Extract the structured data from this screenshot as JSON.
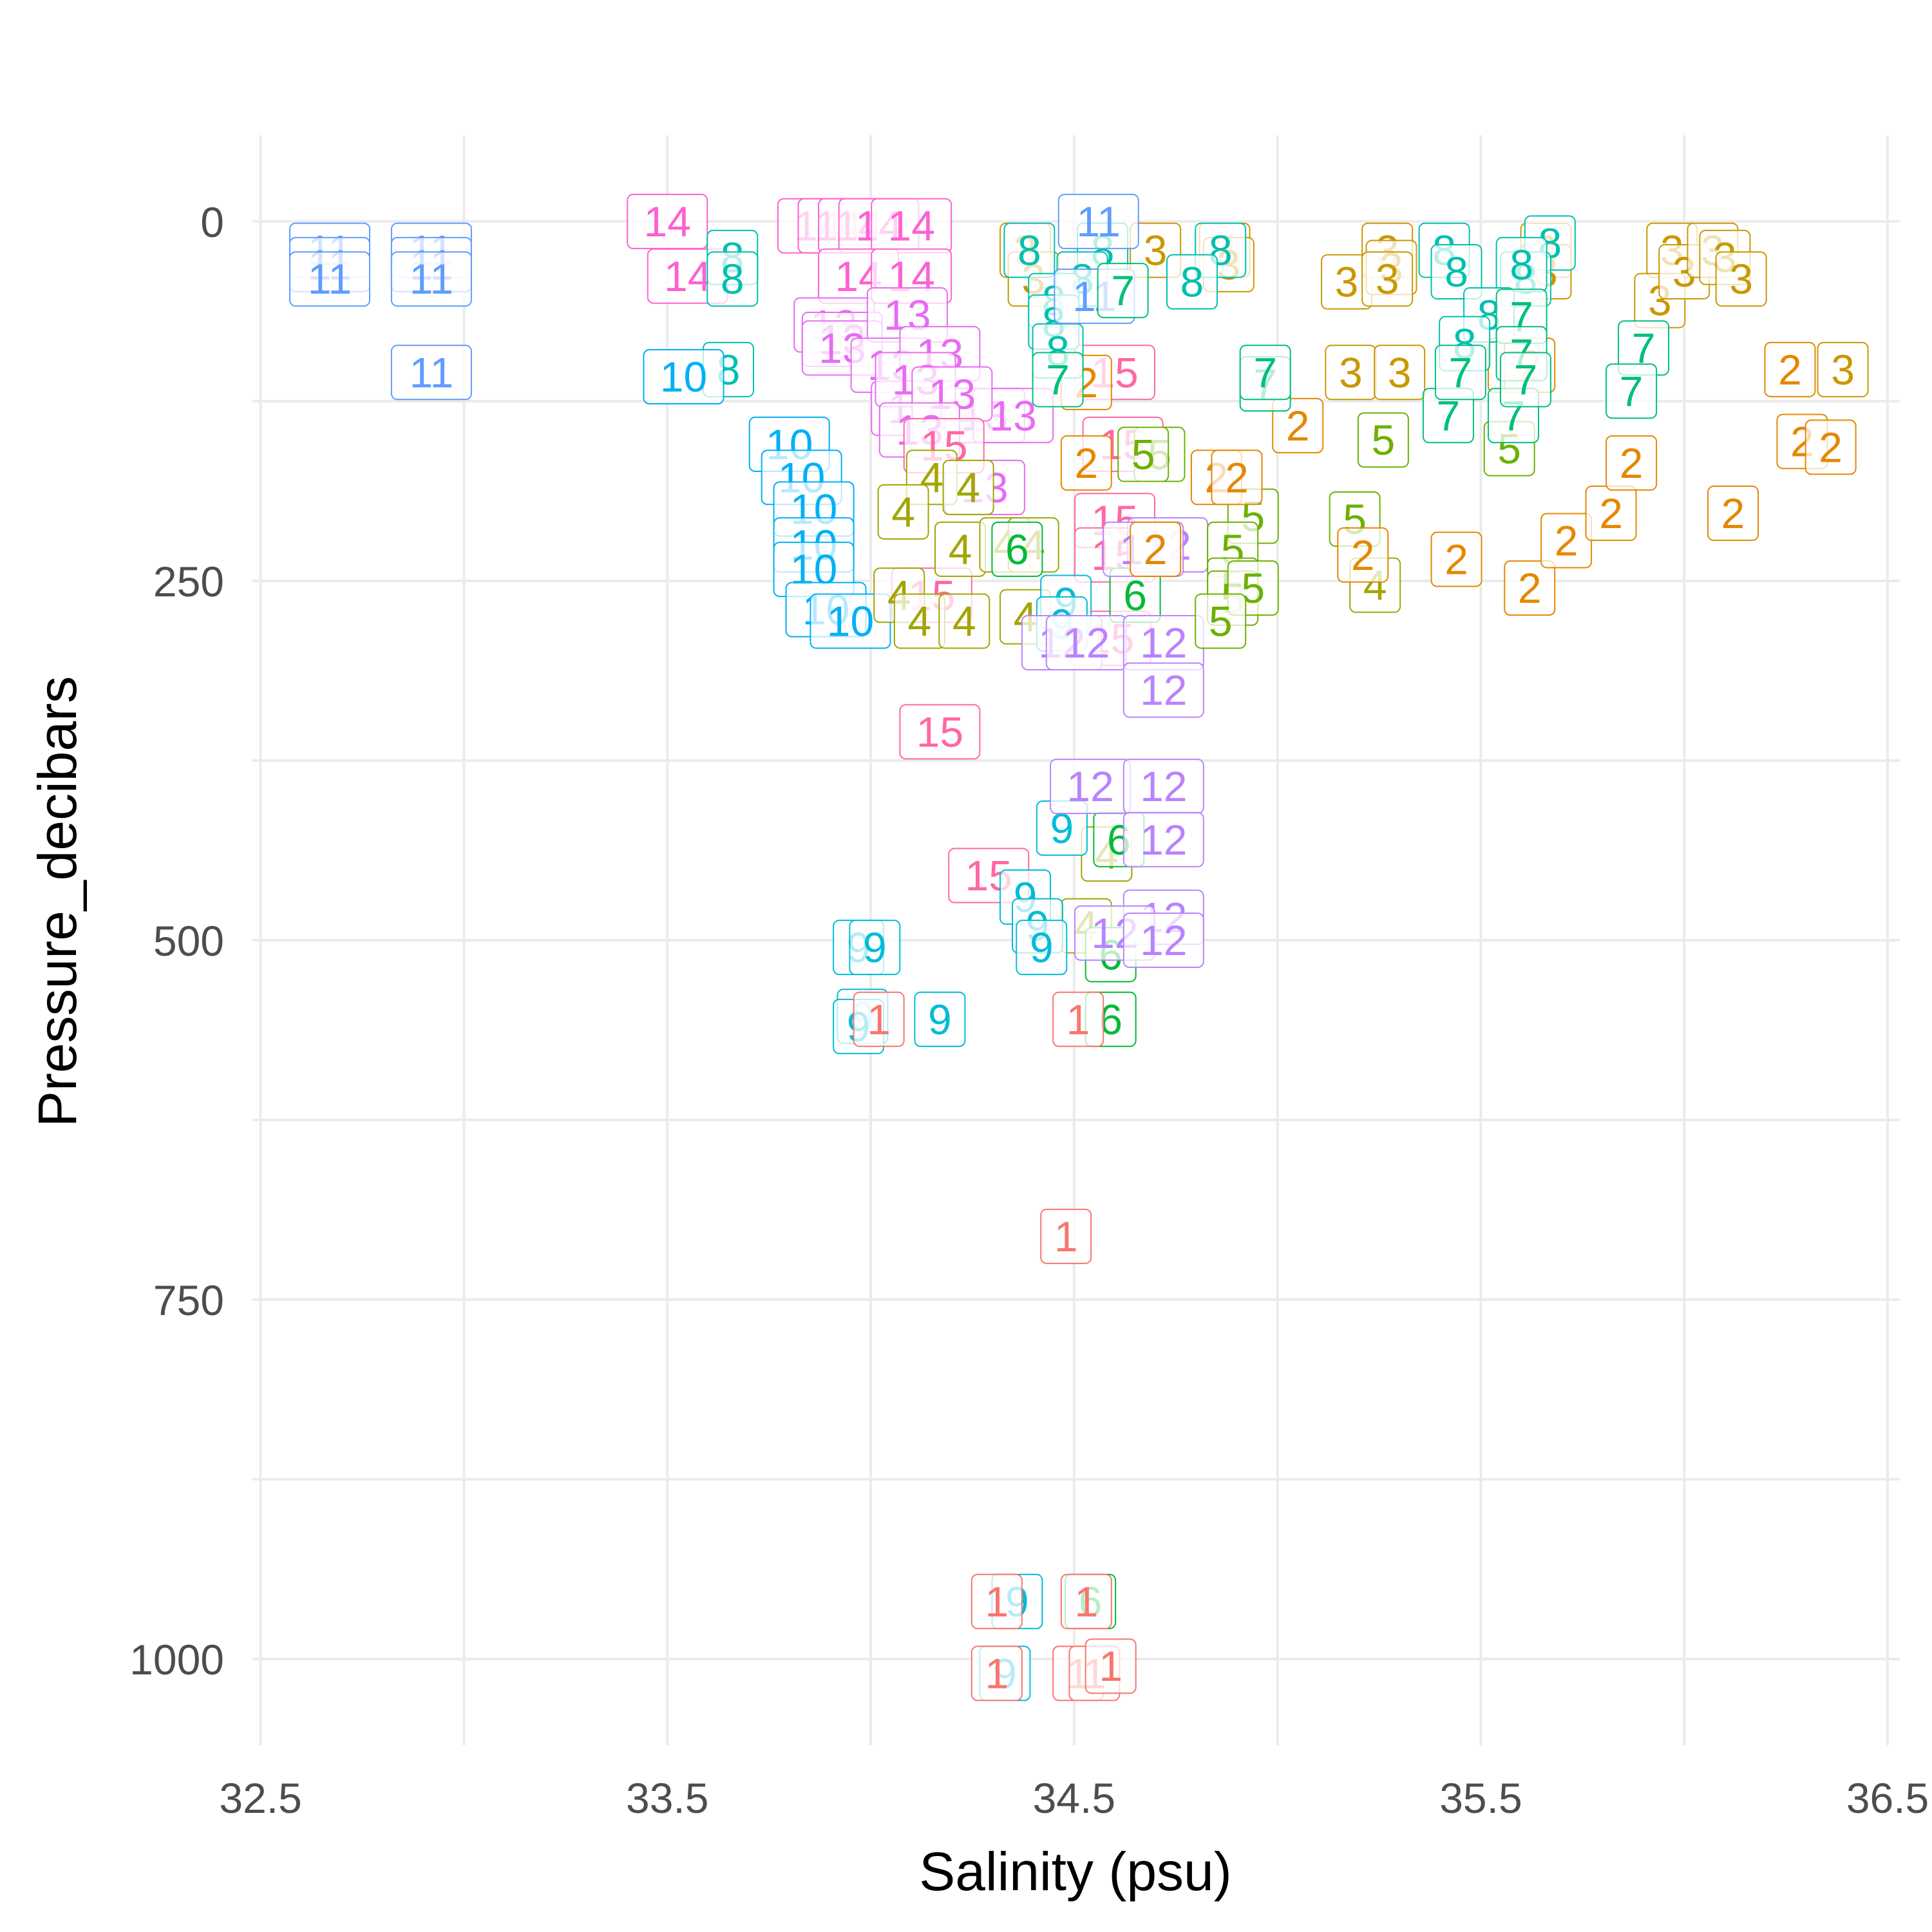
{
  "chart_data": {
    "type": "scatter",
    "title": "",
    "xlabel": "Salinity (psu)",
    "ylabel": "Pressure_decibars",
    "xlim": [
      32.48,
      36.53
    ],
    "ylim": [
      1060,
      -60
    ],
    "y_reversed": true,
    "x_ticks": [
      32.5,
      33.5,
      34.5,
      35.5,
      36.5
    ],
    "x_tick_labels": [
      "32.5",
      "33.5",
      "34.5",
      "35.5",
      "36.5"
    ],
    "y_ticks": [
      0,
      250,
      500,
      750,
      1000
    ],
    "y_tick_labels": [
      "0",
      "250",
      "500",
      "750",
      "1000"
    ],
    "x_minor_gridlines": [
      33.0,
      34.0,
      35.0,
      36.0
    ],
    "y_minor_gridlines": [
      125,
      375,
      625,
      875
    ],
    "grid": true,
    "legend": "none",
    "marker": "boxed text label showing station number",
    "station_colors": {
      "1": "#F8766D",
      "2": "#E58700",
      "3": "#C99800",
      "4": "#A3A500",
      "5": "#6BB100",
      "6": "#00BA38",
      "7": "#00BF7D",
      "8": "#00C0AF",
      "9": "#00BCD8",
      "10": "#00B0F6",
      "11": "#619CFF",
      "12": "#B983FF",
      "13": "#E76BF3",
      "14": "#FD61D1",
      "15": "#FF67A4"
    },
    "points": [
      {
        "label": "11",
        "x": 32.67,
        "y": 20
      },
      {
        "label": "11",
        "x": 32.67,
        "y": 30
      },
      {
        "label": "11",
        "x": 32.67,
        "y": 40
      },
      {
        "label": "11",
        "x": 32.92,
        "y": 20
      },
      {
        "label": "11",
        "x": 32.92,
        "y": 30
      },
      {
        "label": "11",
        "x": 32.92,
        "y": 40
      },
      {
        "label": "11",
        "x": 32.92,
        "y": 105
      },
      {
        "label": "14",
        "x": 33.5,
        "y": 0
      },
      {
        "label": "14",
        "x": 33.55,
        "y": 38
      },
      {
        "label": "14",
        "x": 33.87,
        "y": 3
      },
      {
        "label": "14",
        "x": 33.92,
        "y": 3
      },
      {
        "label": "14",
        "x": 33.97,
        "y": 3
      },
      {
        "label": "14",
        "x": 34.02,
        "y": 3
      },
      {
        "label": "14",
        "x": 34.1,
        "y": 3
      },
      {
        "label": "14",
        "x": 33.97,
        "y": 38
      },
      {
        "label": "14",
        "x": 34.1,
        "y": 38
      },
      {
        "label": "8",
        "x": 33.66,
        "y": 25
      },
      {
        "label": "8",
        "x": 33.66,
        "y": 40
      },
      {
        "label": "8",
        "x": 33.65,
        "y": 103
      },
      {
        "label": "10",
        "x": 33.54,
        "y": 108
      },
      {
        "label": "13",
        "x": 33.91,
        "y": 72
      },
      {
        "label": "13",
        "x": 33.93,
        "y": 82
      },
      {
        "label": "13",
        "x": 33.93,
        "y": 88
      },
      {
        "label": "13",
        "x": 34.09,
        "y": 65
      },
      {
        "label": "13",
        "x": 34.05,
        "y": 100
      },
      {
        "label": "13",
        "x": 34.17,
        "y": 92
      },
      {
        "label": "13",
        "x": 34.1,
        "y": 130
      },
      {
        "label": "13",
        "x": 34.2,
        "y": 135
      },
      {
        "label": "13",
        "x": 34.28,
        "y": 135
      },
      {
        "label": "13",
        "x": 34.35,
        "y": 135
      },
      {
        "label": "13",
        "x": 34.11,
        "y": 110
      },
      {
        "label": "13",
        "x": 34.28,
        "y": 185
      },
      {
        "label": "13",
        "x": 34.2,
        "y": 120
      },
      {
        "label": "13",
        "x": 34.12,
        "y": 145
      },
      {
        "label": "10",
        "x": 33.8,
        "y": 155
      },
      {
        "label": "10",
        "x": 33.83,
        "y": 178
      },
      {
        "label": "10",
        "x": 33.86,
        "y": 200
      },
      {
        "label": "10",
        "x": 33.86,
        "y": 225
      },
      {
        "label": "10",
        "x": 33.86,
        "y": 242
      },
      {
        "label": "10",
        "x": 33.89,
        "y": 270
      },
      {
        "label": "10",
        "x": 33.95,
        "y": 278
      },
      {
        "label": "15",
        "x": 34.18,
        "y": 156
      },
      {
        "label": "15",
        "x": 34.15,
        "y": 260
      },
      {
        "label": "15",
        "x": 34.17,
        "y": 355
      },
      {
        "label": "15",
        "x": 34.29,
        "y": 455
      },
      {
        "label": "15",
        "x": 34.6,
        "y": 105
      },
      {
        "label": "15",
        "x": 34.62,
        "y": 155
      },
      {
        "label": "15",
        "x": 34.6,
        "y": 208
      },
      {
        "label": "15",
        "x": 34.6,
        "y": 232
      },
      {
        "label": "15",
        "x": 34.59,
        "y": 290
      },
      {
        "label": "4",
        "x": 34.15,
        "y": 178
      },
      {
        "label": "4",
        "x": 34.24,
        "y": 185
      },
      {
        "label": "4",
        "x": 34.08,
        "y": 202
      },
      {
        "label": "4",
        "x": 34.22,
        "y": 228
      },
      {
        "label": "4",
        "x": 34.33,
        "y": 225
      },
      {
        "label": "4",
        "x": 34.4,
        "y": 225
      },
      {
        "label": "4",
        "x": 34.07,
        "y": 260
      },
      {
        "label": "4",
        "x": 34.12,
        "y": 278
      },
      {
        "label": "4",
        "x": 34.23,
        "y": 278
      },
      {
        "label": "4",
        "x": 34.38,
        "y": 275
      },
      {
        "label": "4",
        "x": 34.58,
        "y": 440
      },
      {
        "label": "4",
        "x": 34.53,
        "y": 490
      },
      {
        "label": "4",
        "x": 35.24,
        "y": 253
      },
      {
        "label": "6",
        "x": 34.36,
        "y": 228
      },
      {
        "label": "6",
        "x": 34.65,
        "y": 260
      },
      {
        "label": "6",
        "x": 34.61,
        "y": 430
      },
      {
        "label": "6",
        "x": 34.59,
        "y": 510
      },
      {
        "label": "6",
        "x": 34.59,
        "y": 555
      },
      {
        "label": "6",
        "x": 34.54,
        "y": 960
      },
      {
        "label": "9",
        "x": 34.48,
        "y": 265
      },
      {
        "label": "9",
        "x": 34.47,
        "y": 280
      },
      {
        "label": "9",
        "x": 34.47,
        "y": 422
      },
      {
        "label": "9",
        "x": 34.38,
        "y": 470
      },
      {
        "label": "9",
        "x": 34.41,
        "y": 490
      },
      {
        "label": "9",
        "x": 34.42,
        "y": 505
      },
      {
        "label": "9",
        "x": 33.97,
        "y": 505
      },
      {
        "label": "9",
        "x": 34.01,
        "y": 505
      },
      {
        "label": "9",
        "x": 33.98,
        "y": 553
      },
      {
        "label": "9",
        "x": 33.97,
        "y": 560
      },
      {
        "label": "9",
        "x": 34.17,
        "y": 555
      },
      {
        "label": "9",
        "x": 34.36,
        "y": 960
      },
      {
        "label": "9",
        "x": 34.33,
        "y": 1010
      },
      {
        "label": "1",
        "x": 34.48,
        "y": 706
      },
      {
        "label": "1",
        "x": 34.51,
        "y": 555
      },
      {
        "label": "1",
        "x": 34.02,
        "y": 555
      },
      {
        "label": "1",
        "x": 34.31,
        "y": 960
      },
      {
        "label": "1",
        "x": 34.53,
        "y": 960
      },
      {
        "label": "1",
        "x": 34.31,
        "y": 1010
      },
      {
        "label": "1",
        "x": 34.51,
        "y": 1010
      },
      {
        "label": "1",
        "x": 34.55,
        "y": 1010
      },
      {
        "label": "1",
        "x": 34.59,
        "y": 1005
      },
      {
        "label": "12",
        "x": 34.47,
        "y": 293
      },
      {
        "label": "12",
        "x": 34.53,
        "y": 293
      },
      {
        "label": "12",
        "x": 34.72,
        "y": 293
      },
      {
        "label": "12",
        "x": 34.72,
        "y": 326
      },
      {
        "label": "12",
        "x": 34.54,
        "y": 393
      },
      {
        "label": "12",
        "x": 34.72,
        "y": 393
      },
      {
        "label": "12",
        "x": 34.72,
        "y": 430
      },
      {
        "label": "12",
        "x": 34.72,
        "y": 484
      },
      {
        "label": "12",
        "x": 34.6,
        "y": 495
      },
      {
        "label": "12",
        "x": 34.72,
        "y": 500
      },
      {
        "label": "12",
        "x": 34.73,
        "y": 225
      },
      {
        "label": "12",
        "x": 34.67,
        "y": 228
      },
      {
        "label": "5",
        "x": 34.71,
        "y": 162
      },
      {
        "label": "5",
        "x": 34.67,
        "y": 162
      },
      {
        "label": "5",
        "x": 34.94,
        "y": 205
      },
      {
        "label": "5",
        "x": 34.89,
        "y": 228
      },
      {
        "label": "5",
        "x": 34.89,
        "y": 253
      },
      {
        "label": "5",
        "x": 34.89,
        "y": 262
      },
      {
        "label": "5",
        "x": 34.94,
        "y": 255
      },
      {
        "label": "5",
        "x": 34.86,
        "y": 278
      },
      {
        "label": "5",
        "x": 35.26,
        "y": 152
      },
      {
        "label": "5",
        "x": 35.19,
        "y": 207
      },
      {
        "label": "5",
        "x": 35.57,
        "y": 158
      },
      {
        "label": "2",
        "x": 34.53,
        "y": 112
      },
      {
        "label": "2",
        "x": 34.53,
        "y": 168
      },
      {
        "label": "2",
        "x": 34.7,
        "y": 228
      },
      {
        "label": "2",
        "x": 34.85,
        "y": 178
      },
      {
        "label": "2",
        "x": 34.9,
        "y": 178
      },
      {
        "label": "2",
        "x": 35.05,
        "y": 142
      },
      {
        "label": "2",
        "x": 35.21,
        "y": 232
      },
      {
        "label": "2",
        "x": 35.44,
        "y": 235
      },
      {
        "label": "2",
        "x": 35.62,
        "y": 255
      },
      {
        "label": "2",
        "x": 35.71,
        "y": 222
      },
      {
        "label": "2",
        "x": 35.82,
        "y": 203
      },
      {
        "label": "2",
        "x": 35.87,
        "y": 168
      },
      {
        "label": "2",
        "x": 36.12,
        "y": 203
      },
      {
        "label": "2",
        "x": 36.26,
        "y": 103
      },
      {
        "label": "2",
        "x": 36.29,
        "y": 153
      },
      {
        "label": "2",
        "x": 36.36,
        "y": 157
      },
      {
        "label": "2",
        "x": 35.58,
        "y": 100
      },
      {
        "label": "2",
        "x": 35.62,
        "y": 100
      },
      {
        "label": "3",
        "x": 34.38,
        "y": 20
      },
      {
        "label": "3",
        "x": 34.7,
        "y": 20
      },
      {
        "label": "3",
        "x": 34.4,
        "y": 40
      },
      {
        "label": "3",
        "x": 34.87,
        "y": 20
      },
      {
        "label": "3",
        "x": 34.88,
        "y": 30
      },
      {
        "label": "3",
        "x": 35.17,
        "y": 42
      },
      {
        "label": "3",
        "x": 35.27,
        "y": 20
      },
      {
        "label": "3",
        "x": 35.28,
        "y": 32
      },
      {
        "label": "3",
        "x": 35.27,
        "y": 40
      },
      {
        "label": "3",
        "x": 35.66,
        "y": 20
      },
      {
        "label": "3",
        "x": 35.66,
        "y": 35
      },
      {
        "label": "3",
        "x": 35.97,
        "y": 20
      },
      {
        "label": "3",
        "x": 35.94,
        "y": 55
      },
      {
        "label": "3",
        "x": 36.0,
        "y": 35
      },
      {
        "label": "3",
        "x": 36.07,
        "y": 20
      },
      {
        "label": "3",
        "x": 36.1,
        "y": 25
      },
      {
        "label": "3",
        "x": 36.14,
        "y": 40
      },
      {
        "label": "3",
        "x": 35.18,
        "y": 105
      },
      {
        "label": "3",
        "x": 35.3,
        "y": 105
      },
      {
        "label": "3",
        "x": 36.39,
        "y": 103
      },
      {
        "label": "8",
        "x": 34.39,
        "y": 20
      },
      {
        "label": "8",
        "x": 34.57,
        "y": 20
      },
      {
        "label": "8",
        "x": 34.52,
        "y": 40
      },
      {
        "label": "8",
        "x": 34.45,
        "y": 55
      },
      {
        "label": "8",
        "x": 34.45,
        "y": 70
      },
      {
        "label": "8",
        "x": 34.46,
        "y": 90
      },
      {
        "label": "8",
        "x": 34.86,
        "y": 20
      },
      {
        "label": "8",
        "x": 34.79,
        "y": 42
      },
      {
        "label": "8",
        "x": 35.41,
        "y": 20
      },
      {
        "label": "8",
        "x": 35.44,
        "y": 35
      },
      {
        "label": "8",
        "x": 35.67,
        "y": 15
      },
      {
        "label": "8",
        "x": 35.61,
        "y": 40
      },
      {
        "label": "8",
        "x": 35.6,
        "y": 30
      },
      {
        "label": "8",
        "x": 35.52,
        "y": 65
      },
      {
        "label": "8",
        "x": 35.46,
        "y": 85
      },
      {
        "label": "11",
        "x": 34.56,
        "y": 0
      },
      {
        "label": "11",
        "x": 34.55,
        "y": 52
      },
      {
        "label": "7",
        "x": 34.62,
        "y": 48
      },
      {
        "label": "7",
        "x": 34.46,
        "y": 110
      },
      {
        "label": "7",
        "x": 34.97,
        "y": 113
      },
      {
        "label": "7",
        "x": 34.97,
        "y": 105
      },
      {
        "label": "7",
        "x": 35.42,
        "y": 135
      },
      {
        "label": "7",
        "x": 35.58,
        "y": 135
      },
      {
        "label": "7",
        "x": 35.6,
        "y": 66
      },
      {
        "label": "7",
        "x": 35.6,
        "y": 92
      },
      {
        "label": "7",
        "x": 35.45,
        "y": 105
      },
      {
        "label": "7",
        "x": 35.61,
        "y": 110
      },
      {
        "label": "7",
        "x": 35.9,
        "y": 88
      },
      {
        "label": "7",
        "x": 35.87,
        "y": 118
      }
    ]
  }
}
